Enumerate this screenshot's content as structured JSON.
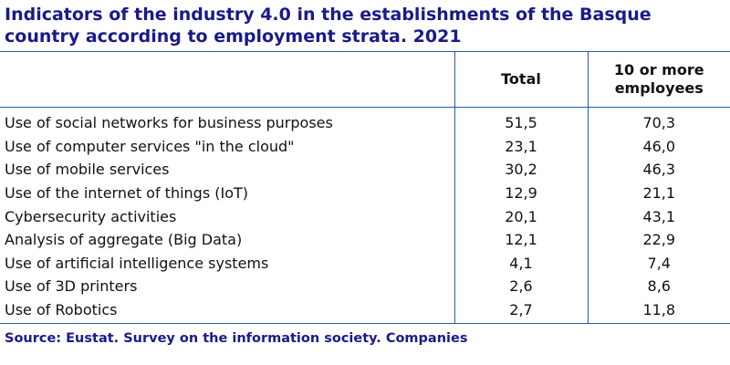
{
  "title": "Indicators of the industry 4.0 in the establishments of the Basque country according to employment strata. 2021",
  "table": {
    "headers": [
      "",
      "Total",
      "10 or more employees"
    ],
    "rows": [
      {
        "label": "Use of social networks for business purposes",
        "total": "51,5",
        "employees10": "70,3"
      },
      {
        "label": "Use of computer services \"in the cloud\"",
        "total": "23,1",
        "employees10": "46,0"
      },
      {
        "label": "Use of mobile services",
        "total": "30,2",
        "employees10": "46,3"
      },
      {
        "label": "Use of the internet of things (IoT)",
        "total": "12,9",
        "employees10": "21,1"
      },
      {
        "label": "Cybersecurity activities",
        "total": "20,1",
        "employees10": "43,1"
      },
      {
        "label": "Analysis of aggregate (Big Data)",
        "total": "12,1",
        "employees10": "22,9"
      },
      {
        "label": "Use of artificial intelligence systems",
        "total": "4,1",
        "employees10": "7,4"
      },
      {
        "label": "Use of 3D printers",
        "total": "2,6",
        "employees10": "8,6"
      },
      {
        "label": "Use of Robotics",
        "total": "2,7",
        "employees10": "11,8"
      }
    ]
  },
  "source": "Source: Eustat. Survey on the information society. Companies",
  "colors": {
    "title": "#1a1a8a",
    "rule": "#2a5aa8",
    "text": "#111111"
  }
}
